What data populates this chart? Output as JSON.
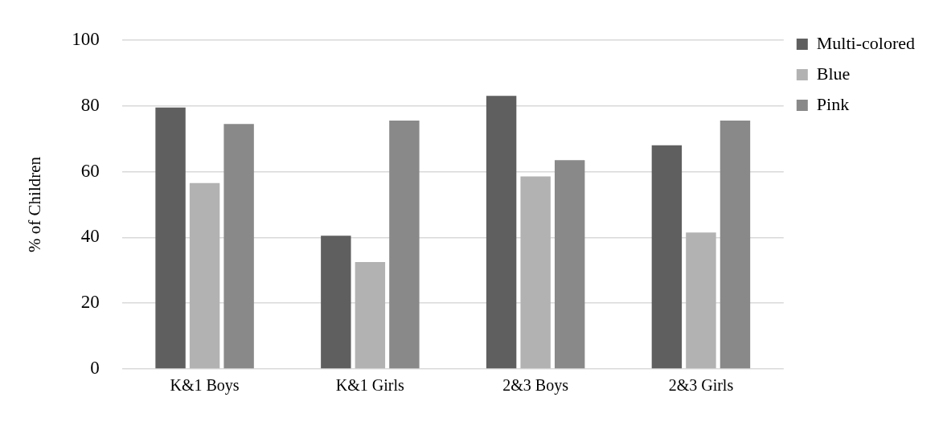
{
  "chart_data": {
    "type": "bar",
    "ylabel": "% of Children",
    "categories": [
      "K&1 Boys",
      "K&1 Girls",
      "2&3 Boys",
      "2&3 Girls"
    ],
    "series": [
      {
        "name": "Multi-colored",
        "color": "#5f5f5f",
        "values": [
          79.5,
          40.5,
          83,
          68
        ]
      },
      {
        "name": "Blue",
        "color": "#b2b2b2",
        "values": [
          56.5,
          32.5,
          58.5,
          41.5
        ]
      },
      {
        "name": "Pink",
        "color": "#898989",
        "values": [
          74.5,
          75.5,
          63.5,
          75.5
        ]
      }
    ],
    "ylim": [
      0,
      100
    ],
    "yticks": [
      0,
      20,
      40,
      60,
      80,
      100
    ],
    "grid": "y",
    "legend": "top right"
  }
}
